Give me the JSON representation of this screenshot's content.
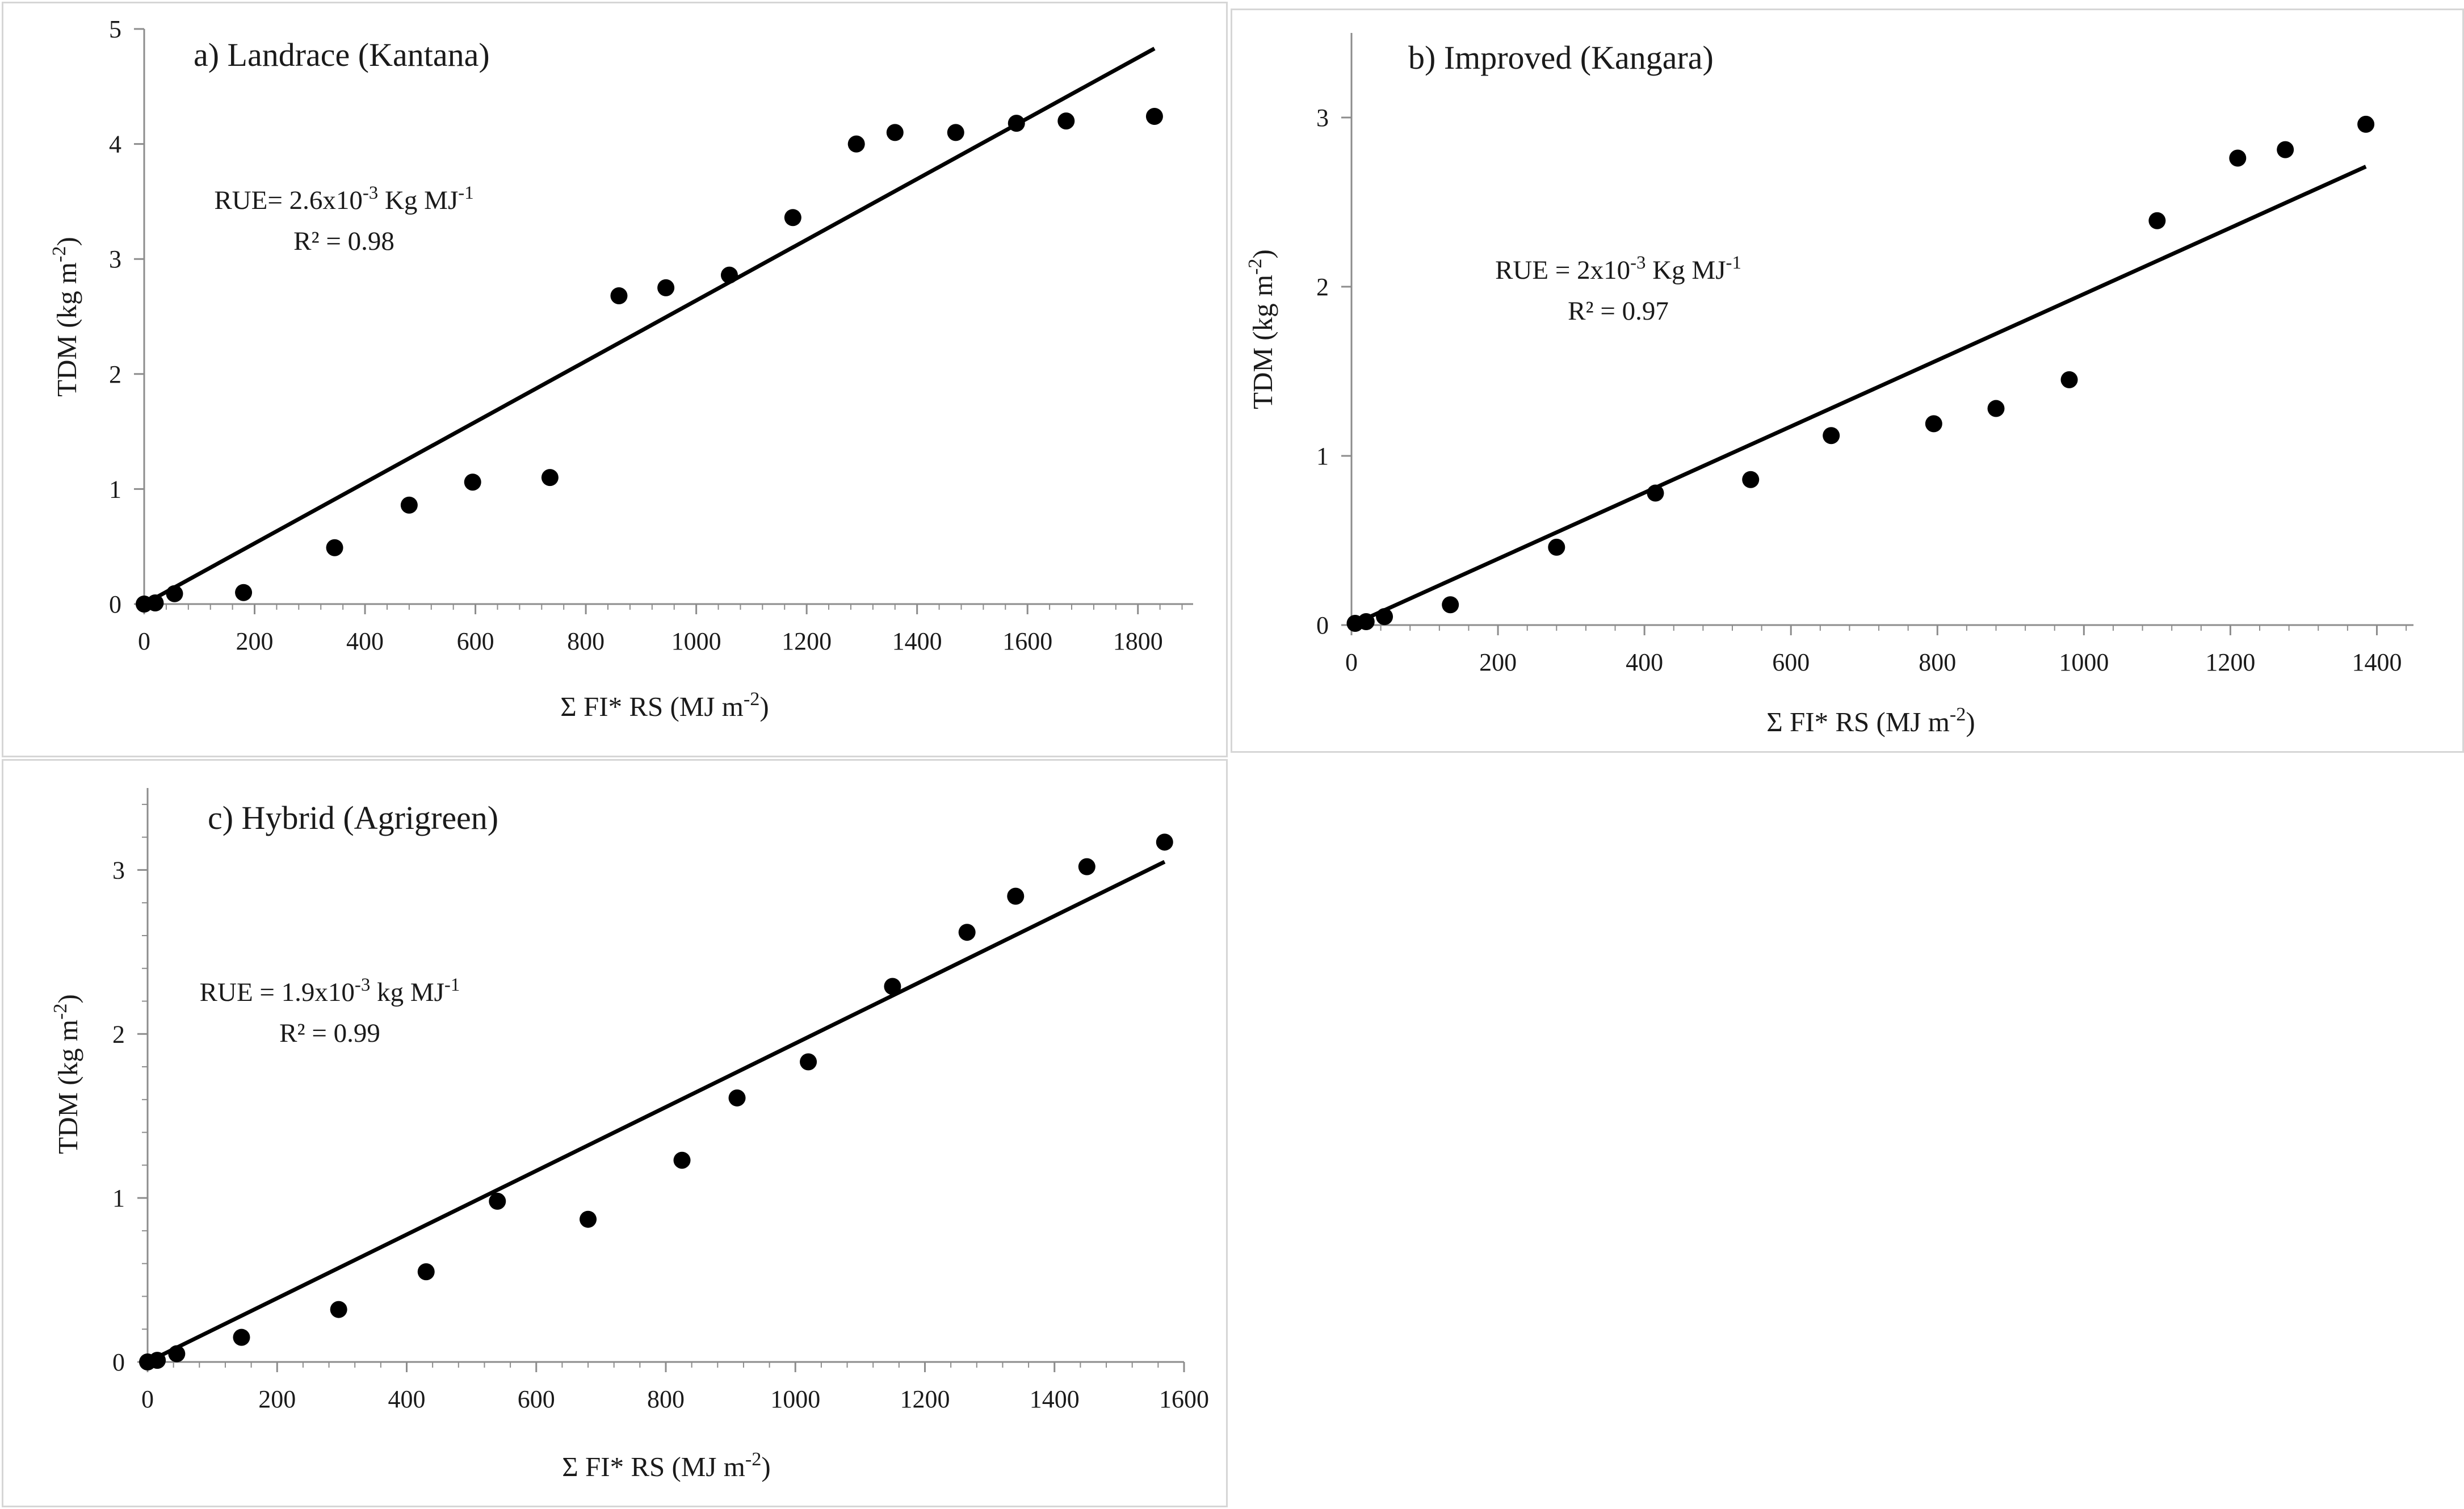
{
  "chart_data": [
    {
      "type": "scatter",
      "title": "a) Landrace (Kantana)",
      "xlabel": "Σ FI* RS (MJ m-2)",
      "ylabel": "TDM (kg m-2)",
      "xlim": [
        0,
        1900
      ],
      "ylim": [
        0,
        5
      ],
      "xticks": [
        0,
        200,
        400,
        600,
        800,
        1000,
        1200,
        1400,
        1600,
        1800
      ],
      "yticks": [
        0,
        1,
        2,
        3,
        4,
        5
      ],
      "x": [
        0,
        20,
        55,
        180,
        345,
        480,
        595,
        735,
        860,
        945,
        1060,
        1175,
        1290,
        1360,
        1470,
        1580,
        1670,
        1830
      ],
      "y": [
        0,
        0.01,
        0.09,
        0.1,
        0.49,
        0.86,
        1.06,
        1.1,
        2.68,
        2.75,
        2.86,
        3.36,
        4.0,
        4.1,
        4.1,
        4.18,
        4.2,
        4.24
      ],
      "trendline": {
        "x": [
          0,
          1830
        ],
        "y": [
          0.0,
          4.83
        ]
      },
      "annotation": {
        "line1": "RUE= 2.6x10-3 Kg MJ-1",
        "line2": "R² = 0.98"
      }
    },
    {
      "type": "scatter",
      "title": "b) Improved (Kangara)",
      "xlabel": "Σ FI* RS (MJ m-2)",
      "ylabel": "TDM (kg m-2)",
      "xlim": [
        0,
        1450
      ],
      "ylim": [
        0,
        3.5
      ],
      "xticks": [
        0,
        200,
        400,
        600,
        800,
        1000,
        1200,
        1400
      ],
      "yticks": [
        0,
        1,
        2,
        3
      ],
      "x": [
        5,
        20,
        45,
        135,
        280,
        415,
        545,
        655,
        795,
        880,
        980,
        1100,
        1210,
        1275,
        1385
      ],
      "y": [
        0.01,
        0.02,
        0.05,
        0.12,
        0.46,
        0.78,
        0.86,
        1.12,
        1.19,
        1.28,
        1.45,
        2.39,
        2.76,
        2.81,
        2.96
      ],
      "trendline": {
        "x": [
          0,
          1385
        ],
        "y": [
          0.0,
          2.71
        ]
      },
      "annotation": {
        "line1": "RUE = 2x10-3 Kg MJ-1",
        "line2": "R² = 0.97"
      }
    },
    {
      "type": "scatter",
      "title": "c) Hybrid (Agrigreen)",
      "xlabel": "Σ FI* RS (MJ m-2)",
      "ylabel": "TDM (kg m-2)",
      "xlim": [
        0,
        1600
      ],
      "ylim": [
        0,
        3.5
      ],
      "xticks": [
        0,
        200,
        400,
        600,
        800,
        1000,
        1200,
        1400,
        1600
      ],
      "yticks": [
        0,
        1,
        2,
        3
      ],
      "x": [
        0,
        15,
        45,
        145,
        295,
        430,
        540,
        680,
        825,
        910,
        1020,
        1150,
        1265,
        1340,
        1450,
        1570
      ],
      "y": [
        0,
        0.01,
        0.05,
        0.15,
        0.32,
        0.55,
        0.98,
        0.87,
        1.23,
        1.61,
        1.83,
        2.29,
        2.62,
        2.84,
        3.02,
        3.17
      ],
      "trendline": {
        "x": [
          0,
          1570
        ],
        "y": [
          0.0,
          3.05
        ]
      },
      "annotation": {
        "line1": "RUE = 1.9x10-3 kg MJ-1",
        "line2": "R² = 0.99"
      }
    }
  ]
}
